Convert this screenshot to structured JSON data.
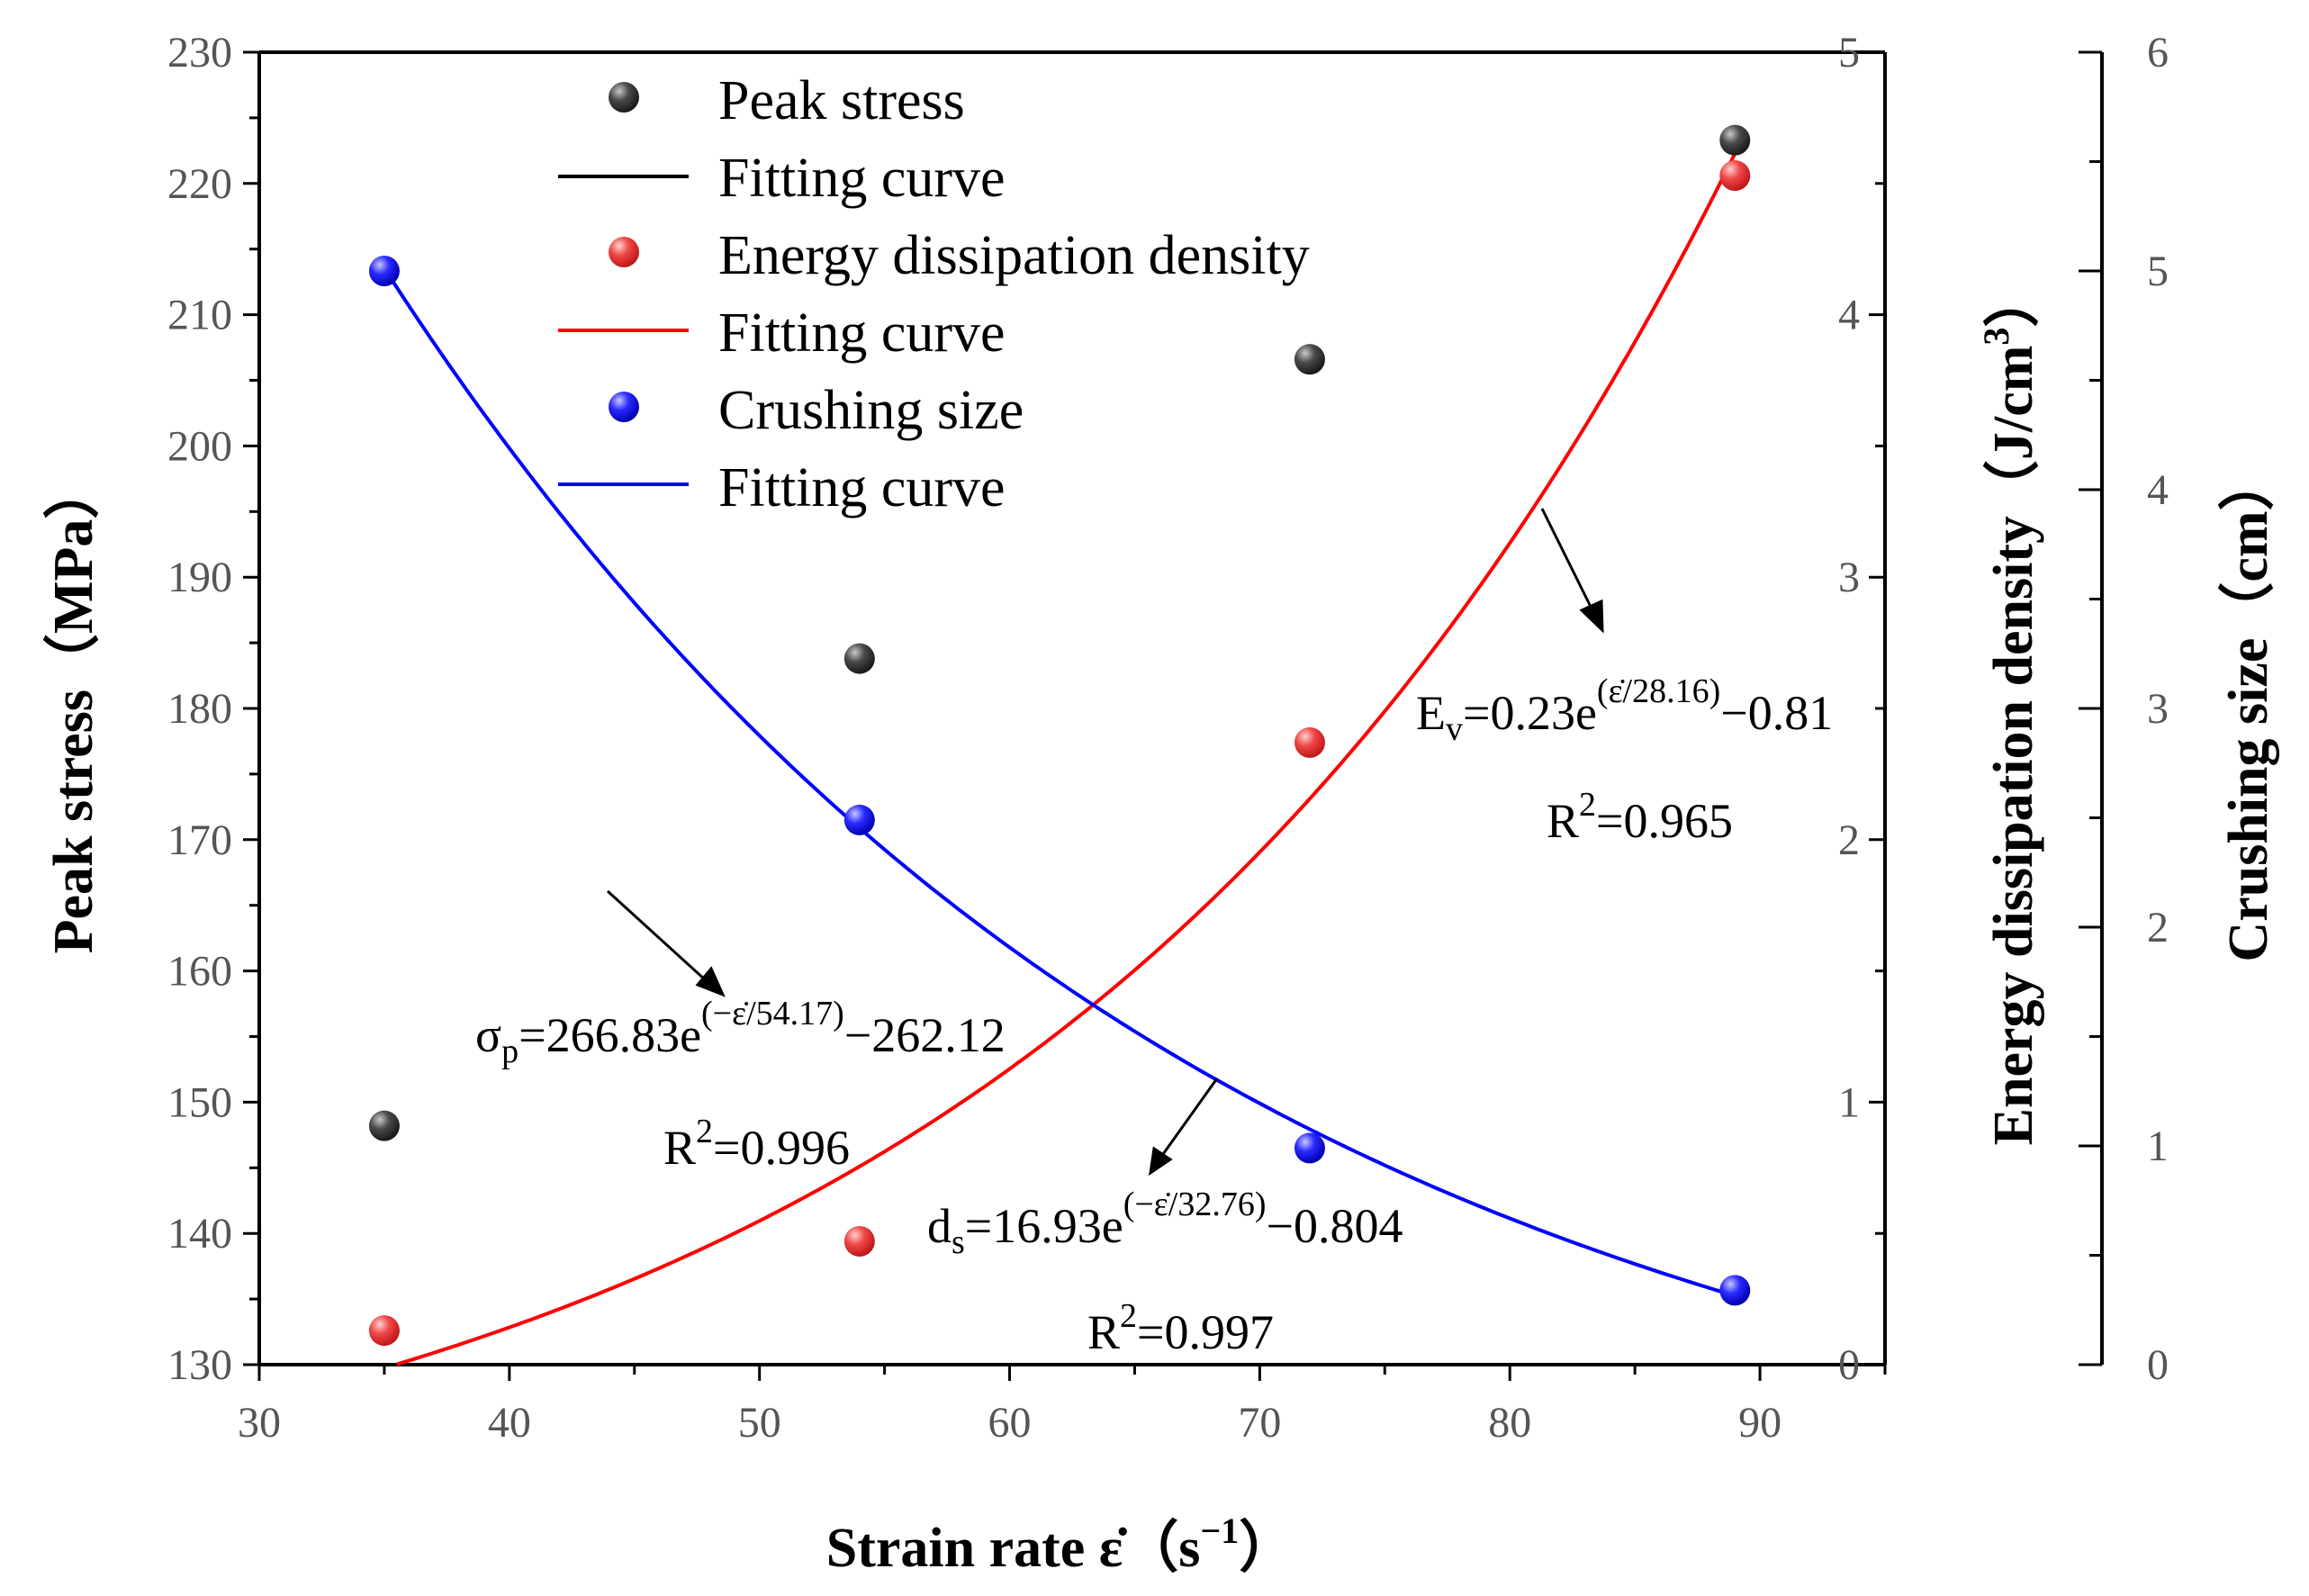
{
  "chart_data": {
    "type": "scatter",
    "title": "",
    "x": [
      35,
      54,
      72,
      89
    ],
    "xlim": [
      30,
      95
    ],
    "xticks": [
      "30",
      "40",
      "50",
      "60",
      "70",
      "80",
      "90"
    ],
    "xlabel": {
      "prefix": "Strain rate ",
      "symbol": "ε̇",
      "suffix": "（s",
      "exp": "−1",
      "close": "）"
    },
    "axes": {
      "left": {
        "label": "Peak stress（MPa）",
        "ylim": [
          130,
          230
        ],
        "ticks": [
          "130",
          "140",
          "150",
          "160",
          "170",
          "180",
          "190",
          "200",
          "210",
          "220",
          "230"
        ]
      },
      "right1": {
        "label_main": "Energy dissipation density（J/cm",
        "label_exp": "3",
        "label_close": "）",
        "ylim": [
          0,
          5
        ],
        "ticks": [
          "0",
          "1",
          "2",
          "3",
          "4",
          "5"
        ]
      },
      "right2": {
        "label": "Crushing size（cm）",
        "ylim": [
          0,
          6
        ],
        "ticks": [
          "0",
          "1",
          "2",
          "3",
          "4",
          "5",
          "6"
        ]
      }
    },
    "series": [
      {
        "name": "Peak stress",
        "axis": "left",
        "color": "#3a3a3a",
        "values": [
          148.2,
          183.8,
          206.6,
          223.3
        ]
      },
      {
        "name": "Energy dissipation density",
        "axis": "right1",
        "color": "#e8393b",
        "values": [
          0.13,
          0.47,
          2.37,
          4.53
        ]
      },
      {
        "name": "Crushing size",
        "axis": "right2",
        "color": "#1a1aff",
        "values": [
          5.0,
          2.49,
          0.99,
          0.34
        ]
      }
    ],
    "fits": [
      {
        "name": "Fitting curve",
        "axis": "left",
        "color": "#000000",
        "a": 266.83,
        "b": -54.17,
        "c": -262.12,
        "kind": "neg"
      },
      {
        "name": "Fitting curve",
        "axis": "right1",
        "color": "#ff0000",
        "a": 0.23,
        "b": 28.16,
        "c": -0.81,
        "kind": "pos"
      },
      {
        "name": "Fitting curve",
        "axis": "right2",
        "color": "#0000ff",
        "a": 16.93,
        "b": 32.76,
        "c": -0.804,
        "kind": "decay"
      }
    ],
    "legend": {
      "placement": "top-center",
      "entries": [
        "Peak stress",
        "Fitting curve",
        "Energy dissipation density",
        "Fitting curve",
        "Crushing size",
        "Fitting curve"
      ]
    },
    "annotations": {
      "ev_eq": {
        "lhs": "E",
        "sub": "v",
        "mid": "=0.23e",
        "exp": "(ε̇/28.16)",
        "tail": "−0.81"
      },
      "ev_r2": {
        "r": "R",
        "sup": "2",
        "val": "=0.965"
      },
      "sp_eq": {
        "lhs": "σ",
        "sub": "p",
        "mid": "=266.83e",
        "exp": "(−ε̇/54.17)",
        "tail": "−262.12"
      },
      "sp_r2": {
        "r": "R",
        "sup": "2",
        "val": "=0.996"
      },
      "ds_eq": {
        "lhs": "d",
        "sub": "s",
        "mid": "=16.93e",
        "exp": "(−ε̇/32.76)",
        "tail": "−0.804"
      },
      "ds_r2": {
        "r": "R",
        "sup": "2",
        "val": "=0.997"
      }
    }
  }
}
